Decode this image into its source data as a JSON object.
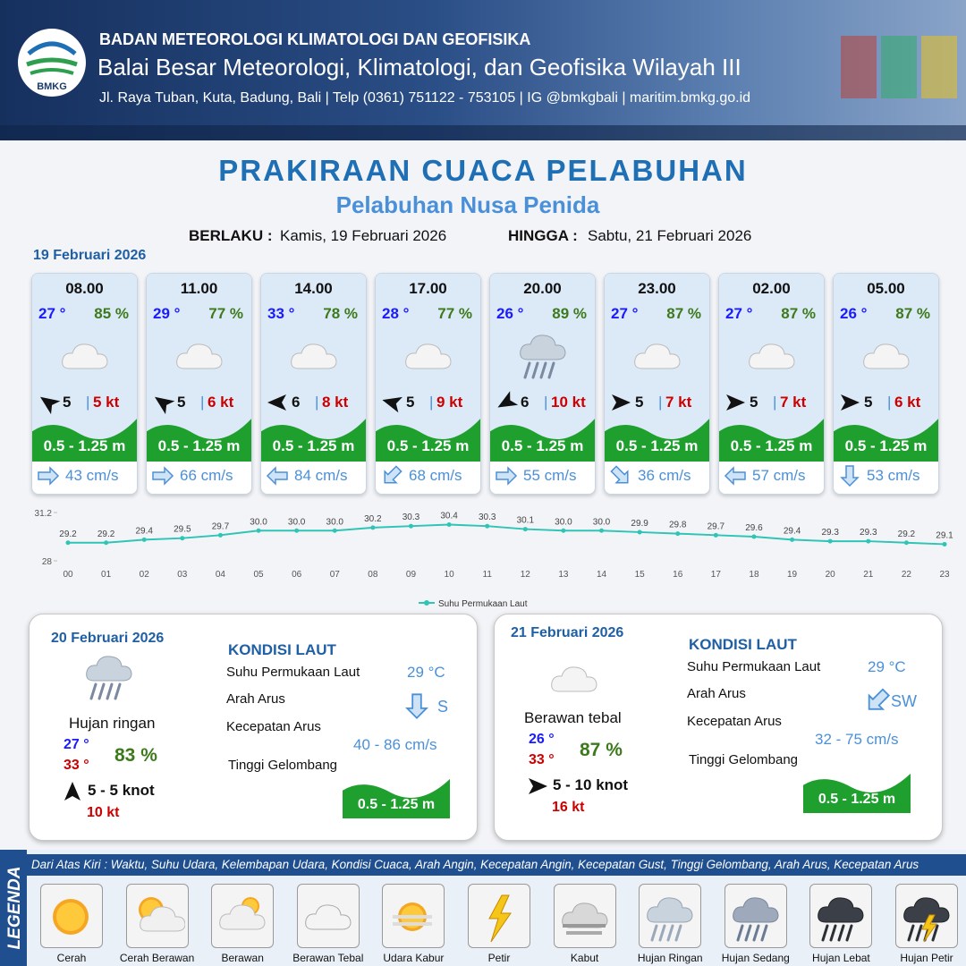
{
  "header": {
    "logo": "BMKG",
    "agency": "BADAN METEOROLOGI KLIMATOLOGI DAN GEOFISIKA",
    "office": "Balai Besar Meteorologi, Klimatologi, dan Geofisika Wilayah III",
    "contact": "Jl. Raya Tuban, Kuta, Badung, Bali | Telp (0361) 751122 - 753105 | IG @bmkgbali | maritim.bmkg.go.id"
  },
  "title": "PRAKIRAAN CUACA PELABUHAN",
  "subtitle": "Pelabuhan Nusa Penida",
  "validity": {
    "from_label": "BERLAKU :",
    "from": "Kamis, 19 Februari 2026",
    "to_label": "HINGGA :",
    "to": "Sabtu, 21 Februari 2026"
  },
  "day1": {
    "date": "19 Februari 2026",
    "slots": [
      {
        "time": "08.00",
        "temp": "27 °",
        "humidity": "85 %",
        "wind": "5",
        "gust": "5 kt",
        "wave": "0.5 - 1.25 m",
        "current": "43 cm/s"
      },
      {
        "time": "11.00",
        "temp": "29 °",
        "humidity": "77 %",
        "wind": "5",
        "gust": "6 kt",
        "wave": "0.5 - 1.25 m",
        "current": "66 cm/s"
      },
      {
        "time": "14.00",
        "temp": "33 °",
        "humidity": "78 %",
        "wind": "6",
        "gust": "8 kt",
        "wave": "0.5 - 1.25 m",
        "current": "84 cm/s"
      },
      {
        "time": "17.00",
        "temp": "28 °",
        "humidity": "77 %",
        "wind": "5",
        "gust": "9 kt",
        "wave": "0.5 - 1.25 m",
        "current": "68 cm/s"
      },
      {
        "time": "20.00",
        "temp": "26 °",
        "humidity": "89 %",
        "wind": "6",
        "gust": "10 kt",
        "wave": "0.5 - 1.25 m",
        "current": "55 cm/s"
      },
      {
        "time": "23.00",
        "temp": "27 °",
        "humidity": "87 %",
        "wind": "5",
        "gust": "7 kt",
        "wave": "0.5 - 1.25 m",
        "current": "36 cm/s"
      },
      {
        "time": "02.00",
        "temp": "27 °",
        "humidity": "87 %",
        "wind": "5",
        "gust": "7 kt",
        "wave": "0.5 - 1.25 m",
        "current": "57 cm/s"
      },
      {
        "time": "05.00",
        "temp": "26 °",
        "humidity": "87 %",
        "wind": "5",
        "gust": "6 kt",
        "wave": "0.5 - 1.25 m",
        "current": "53 cm/s"
      }
    ]
  },
  "sst_chart": {
    "type": "line",
    "categories": [
      "00",
      "01",
      "02",
      "03",
      "04",
      "05",
      "06",
      "07",
      "08",
      "09",
      "10",
      "11",
      "12",
      "13",
      "14",
      "15",
      "16",
      "17",
      "18",
      "19",
      "20",
      "21",
      "22",
      "23"
    ],
    "values": [
      29.2,
      29.2,
      29.4,
      29.5,
      29.7,
      30.0,
      30.0,
      30.0,
      30.2,
      30.3,
      30.4,
      30.3,
      30.1,
      30.0,
      30.0,
      29.9,
      29.8,
      29.7,
      29.6,
      29.4,
      29.3,
      29.3,
      29.2,
      29.1
    ],
    "value_labels": [
      "29.2",
      "29.2",
      "29.4",
      "29.5",
      "29.7",
      "30.0",
      "30.0",
      "30.0",
      "30.2",
      "30.3",
      "30.4",
      "30.3",
      "30.1",
      "30.0",
      "30.0",
      "29.9",
      "29.8",
      "29.7",
      "29.6",
      "29.4",
      "29.3",
      "29.3",
      "29.2",
      "29.1"
    ],
    "ylim": [
      28,
      31.2
    ],
    "yticks": [
      28,
      31.2
    ],
    "series_name": "Suhu Permukaan Laut",
    "color": "#2ec4b6"
  },
  "days": [
    {
      "date": "20 Februari 2026",
      "weather": "Hujan ringan",
      "temp_min": "27 °",
      "temp_max": "33 °",
      "humidity": "83 %",
      "wind": "5 - 5 knot",
      "gust": "10 kt",
      "sea_title": "KONDISI LAUT",
      "sst_label": "Suhu Permukaan Laut",
      "sst": "29 °C",
      "dir_label": "Arah Arus",
      "dir": "S",
      "speed_label": "Kecepatan Arus",
      "speed": "40 - 86 cm/s",
      "wave_label": "Tinggi Gelombang",
      "wave": "0.5 - 1.25 m"
    },
    {
      "date": "21 Februari 2026",
      "weather": "Berawan tebal",
      "temp_min": "26 °",
      "temp_max": "33 °",
      "humidity": "87 %",
      "wind": "5 - 10 knot",
      "gust": "16 kt",
      "sea_title": "KONDISI LAUT",
      "sst_label": "Suhu Permukaan Laut",
      "sst": "29 °C",
      "dir_label": "Arah Arus",
      "dir": "SW",
      "speed_label": "Kecepatan Arus",
      "speed": "32 - 75 cm/s",
      "wave_label": "Tinggi Gelombang",
      "wave": "0.5 - 1.25 m"
    }
  ],
  "legend": {
    "title": "LEGENDA",
    "description": "Dari Atas Kiri : Waktu, Suhu Udara, Kelembapan Udara, Kondisi Cuaca, Arah Angin, Kecepatan Angin, Kecepatan Gust, Tinggi Gelombang, Arah Arus, Kecepatan Arus",
    "items": [
      "Cerah",
      "Cerah Berawan",
      "Berawan",
      "Berawan Tebal",
      "Udara Kabur",
      "Petir",
      "Kabut",
      "Hujan Ringan",
      "Hujan Sedang",
      "Hujan Lebat",
      "Hujan Petir"
    ]
  }
}
